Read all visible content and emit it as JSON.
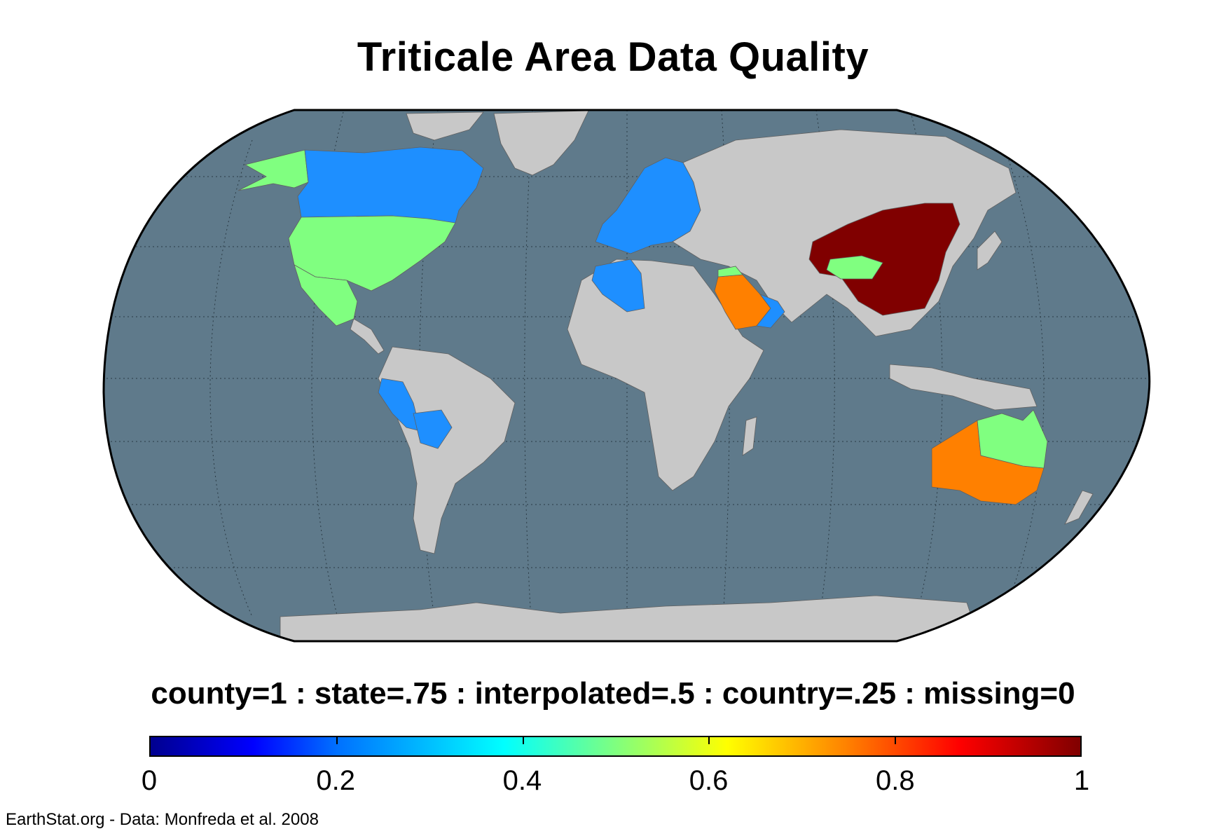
{
  "title": "Triticale Area Data Quality",
  "legend": {
    "caption": "county=1 : state=.75 : interpolated=.5 : country=.25 : missing=0",
    "min": 0,
    "max": 1,
    "ticks": [
      "0",
      "0.2",
      "0.4",
      "0.6",
      "0.8",
      "1"
    ],
    "tick_values": [
      0,
      0.2,
      0.4,
      0.6,
      0.8,
      1
    ]
  },
  "credit": "EarthStat.org - Data: Monfreda et al. 2008",
  "colors": {
    "ocean": "#5f7a8b",
    "land_missing": "#c8c8c8",
    "country_level": "#1e8fff",
    "interpolated": "#80ff80",
    "state_level": "#ff8000",
    "county_level": "#800000"
  },
  "regions": [
    {
      "name": "Alaska",
      "value": 0.5
    },
    {
      "name": "Canada",
      "value": 0.25
    },
    {
      "name": "United States",
      "value": 0.5
    },
    {
      "name": "Mexico",
      "value": 0.5
    },
    {
      "name": "Europe",
      "value": 0.25
    },
    {
      "name": "Algeria",
      "value": 0.25
    },
    {
      "name": "Saudi Arabia",
      "value": 0.75
    },
    {
      "name": "Arabian Peninsula East",
      "value": 0.25
    },
    {
      "name": "China",
      "value": 1
    },
    {
      "name": "Peru",
      "value": 0.25
    },
    {
      "name": "Bolivia",
      "value": 0.25
    },
    {
      "name": "Australia North-East",
      "value": 0.5
    },
    {
      "name": "Australia South-West",
      "value": 0.75
    }
  ]
}
